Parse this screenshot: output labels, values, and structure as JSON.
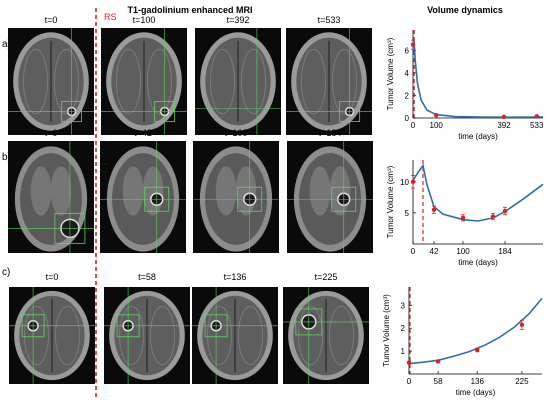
{
  "figure": {
    "mri_title": "T1-gadolinium enhanced MRI",
    "dynamics_title": "Volume dynamics",
    "rs_label": "RS",
    "colors": {
      "curve": "#2f6fb0",
      "points": "#d0261f",
      "rs_line": "#d0261f",
      "crosshair": "#5fd35f"
    }
  },
  "rows": [
    {
      "label": "a)",
      "scans": [
        {
          "time": "t=0",
          "view": "axial",
          "lesion": "small-right"
        },
        {
          "time": "t=100",
          "view": "axial",
          "lesion": "small-right"
        },
        {
          "time": "t=392",
          "view": "axial",
          "lesion": "none"
        },
        {
          "time": "t=533",
          "view": "axial",
          "lesion": "small-right"
        }
      ]
    },
    {
      "label": "b)",
      "scans": [
        {
          "time": "t=0",
          "view": "coronal",
          "lesion": "large-right"
        },
        {
          "time": "t=42",
          "view": "coronal",
          "lesion": "medium-right"
        },
        {
          "time": "t=100",
          "view": "coronal",
          "lesion": "medium-right"
        },
        {
          "time": "t=184",
          "view": "coronal",
          "lesion": "medium-right"
        }
      ]
    },
    {
      "label": "c)",
      "scans": [
        {
          "time": "t=0",
          "view": "axial",
          "lesion": "small-left"
        },
        {
          "time": "t=58",
          "view": "axial",
          "lesion": "small-left"
        },
        {
          "time": "t=136",
          "view": "axial",
          "lesion": "small-left"
        },
        {
          "time": "t=225",
          "view": "axial",
          "lesion": "medium-left"
        }
      ]
    }
  ],
  "chart_data": [
    {
      "type": "line",
      "ylabel": "Tumor Volume (cm³)",
      "xlabel": "time (days)",
      "xlim": [
        0,
        560
      ],
      "ylim": [
        0,
        7.8
      ],
      "xticks": [
        0,
        100,
        392,
        533
      ],
      "yticks": [
        0,
        2,
        4,
        6
      ],
      "rs_day": 5,
      "points": [
        {
          "x": 0,
          "y": 6.5,
          "err": 0.4
        },
        {
          "x": 100,
          "y": 0.25,
          "err": 0.05
        },
        {
          "x": 392,
          "y": 0.1,
          "err": 0.05
        },
        {
          "x": 533,
          "y": 0.15,
          "err": 0.05
        }
      ],
      "curve": [
        [
          0,
          6.5
        ],
        [
          5,
          6.7
        ],
        [
          10,
          5.0
        ],
        [
          20,
          3.0
        ],
        [
          35,
          1.6
        ],
        [
          60,
          0.7
        ],
        [
          100,
          0.3
        ],
        [
          180,
          0.12
        ],
        [
          300,
          0.08
        ],
        [
          400,
          0.07
        ],
        [
          533,
          0.09
        ],
        [
          560,
          0.1
        ]
      ]
    },
    {
      "type": "line",
      "ylabel": "Tumor Volume (cm³)",
      "xlabel": "time (days)",
      "xlim": [
        0,
        260
      ],
      "ylim": [
        0,
        13.5
      ],
      "xticks": [
        0,
        42,
        100,
        184
      ],
      "yticks": [
        5,
        10
      ],
      "rs_day": 20,
      "points": [
        {
          "x": 0,
          "y": 10.0,
          "err": 1.0
        },
        {
          "x": 42,
          "y": 5.5,
          "err": 0.6
        },
        {
          "x": 100,
          "y": 4.2,
          "err": 0.5
        },
        {
          "x": 160,
          "y": 4.4,
          "err": 0.5
        },
        {
          "x": 184,
          "y": 5.3,
          "err": 0.6
        }
      ],
      "curve": [
        [
          0,
          10.2
        ],
        [
          10,
          11.5
        ],
        [
          20,
          12.6
        ],
        [
          28,
          9.5
        ],
        [
          42,
          6.0
        ],
        [
          60,
          4.8
        ],
        [
          100,
          3.9
        ],
        [
          130,
          3.7
        ],
        [
          160,
          4.2
        ],
        [
          184,
          5.2
        ],
        [
          220,
          7.2
        ],
        [
          260,
          9.6
        ]
      ]
    },
    {
      "type": "line",
      "ylabel": "Tumor Volume (cm³)",
      "xlabel": "time (days)",
      "xlim": [
        0,
        265
      ],
      "ylim": [
        0,
        3.8
      ],
      "xticks": [
        0,
        58,
        136,
        225
      ],
      "yticks": [
        1,
        2,
        3
      ],
      "rs_day": 2,
      "points": [
        {
          "x": 0,
          "y": 0.5,
          "err": 0.05
        },
        {
          "x": 58,
          "y": 0.55,
          "err": 0.05
        },
        {
          "x": 136,
          "y": 1.05,
          "err": 0.08
        },
        {
          "x": 225,
          "y": 2.15,
          "err": 0.2
        }
      ],
      "curve": [
        [
          0,
          0.45
        ],
        [
          30,
          0.52
        ],
        [
          58,
          0.6
        ],
        [
          90,
          0.78
        ],
        [
          120,
          0.98
        ],
        [
          150,
          1.25
        ],
        [
          180,
          1.6
        ],
        [
          210,
          2.05
        ],
        [
          240,
          2.65
        ],
        [
          265,
          3.3
        ]
      ]
    }
  ]
}
